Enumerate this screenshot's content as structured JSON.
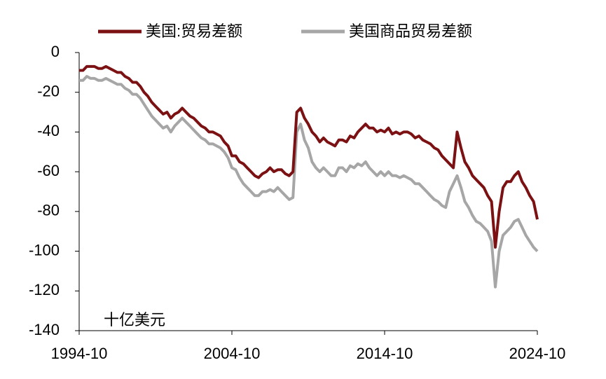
{
  "chart_data": {
    "type": "line",
    "unit_label": "十亿美元",
    "x": [
      "1994-10",
      "1995-01",
      "1995-04",
      "1995-07",
      "1995-10",
      "1996-01",
      "1996-04",
      "1996-07",
      "1996-10",
      "1997-01",
      "1997-04",
      "1997-07",
      "1997-10",
      "1998-01",
      "1998-04",
      "1998-07",
      "1998-10",
      "1999-01",
      "1999-04",
      "1999-07",
      "1999-10",
      "2000-01",
      "2000-04",
      "2000-07",
      "2000-10",
      "2001-01",
      "2001-04",
      "2001-07",
      "2001-10",
      "2002-01",
      "2002-04",
      "2002-07",
      "2002-10",
      "2003-01",
      "2003-04",
      "2003-07",
      "2003-10",
      "2004-01",
      "2004-04",
      "2004-07",
      "2004-10",
      "2005-01",
      "2005-04",
      "2005-07",
      "2005-10",
      "2006-01",
      "2006-04",
      "2006-07",
      "2006-10",
      "2007-01",
      "2007-04",
      "2007-07",
      "2007-10",
      "2008-01",
      "2008-04",
      "2008-07",
      "2008-10",
      "2009-01",
      "2009-04",
      "2009-07",
      "2009-10",
      "2010-01",
      "2010-04",
      "2010-07",
      "2010-10",
      "2011-01",
      "2011-04",
      "2011-07",
      "2011-10",
      "2012-01",
      "2012-04",
      "2012-07",
      "2012-10",
      "2013-01",
      "2013-04",
      "2013-07",
      "2013-10",
      "2014-01",
      "2014-04",
      "2014-07",
      "2014-10",
      "2015-01",
      "2015-04",
      "2015-07",
      "2015-10",
      "2016-01",
      "2016-04",
      "2016-07",
      "2016-10",
      "2017-01",
      "2017-04",
      "2017-07",
      "2017-10",
      "2018-01",
      "2018-04",
      "2018-07",
      "2018-10",
      "2019-01",
      "2019-04",
      "2019-07",
      "2019-10",
      "2020-01",
      "2020-04",
      "2020-07",
      "2020-10",
      "2021-01",
      "2021-04",
      "2021-07",
      "2021-10",
      "2022-01",
      "2022-04",
      "2022-07",
      "2022-10",
      "2023-01",
      "2023-04",
      "2023-07",
      "2023-10",
      "2024-01",
      "2024-04",
      "2024-07",
      "2024-10"
    ],
    "xticks": [
      "1994-10",
      "2004-10",
      "2014-10",
      "2024-10"
    ],
    "series": [
      {
        "name": "美国:贸易差额",
        "color": "#7b1113",
        "values": [
          -9,
          -9,
          -7,
          -7,
          -7,
          -8,
          -8,
          -7,
          -8,
          -9,
          -10,
          -10,
          -12,
          -13,
          -15,
          -15,
          -17,
          -20,
          -22,
          -25,
          -27,
          -29,
          -31,
          -30,
          -33,
          -31,
          -30,
          -28,
          -30,
          -32,
          -33,
          -35,
          -37,
          -38,
          -40,
          -40,
          -41,
          -42,
          -45,
          -47,
          -52,
          -52,
          -55,
          -56,
          -58,
          -60,
          -62,
          -63,
          -61,
          -60,
          -58,
          -60,
          -59,
          -59,
          -61,
          -62,
          -60,
          -30,
          -28,
          -33,
          -36,
          -40,
          -42,
          -45,
          -43,
          -45,
          -46,
          -47,
          -44,
          -44,
          -45,
          -42,
          -43,
          -40,
          -38,
          -36,
          -38,
          -38,
          -40,
          -39,
          -40,
          -38,
          -41,
          -40,
          -41,
          -40,
          -40,
          -41,
          -43,
          -42,
          -44,
          -45,
          -46,
          -48,
          -49,
          -52,
          -54,
          -56,
          -58,
          -40,
          -48,
          -55,
          -58,
          -62,
          -64,
          -66,
          -68,
          -72,
          -75,
          -98,
          -80,
          -68,
          -65,
          -65,
          -62,
          -60,
          -65,
          -68,
          -72,
          -75,
          -84
        ]
      },
      {
        "name": "美国商品贸易差额",
        "color": "#a6a6a6",
        "values": [
          -14,
          -14,
          -12,
          -13,
          -13,
          -14,
          -14,
          -13,
          -14,
          -15,
          -16,
          -16,
          -18,
          -19,
          -21,
          -21,
          -23,
          -26,
          -29,
          -32,
          -34,
          -36,
          -38,
          -37,
          -40,
          -37,
          -35,
          -33,
          -35,
          -37,
          -39,
          -41,
          -43,
          -44,
          -46,
          -46,
          -47,
          -48,
          -50,
          -53,
          -58,
          -59,
          -63,
          -66,
          -68,
          -70,
          -72,
          -72,
          -70,
          -70,
          -69,
          -70,
          -68,
          -70,
          -72,
          -74,
          -73,
          -40,
          -36,
          -44,
          -48,
          -55,
          -58,
          -60,
          -58,
          -60,
          -62,
          -62,
          -58,
          -58,
          -60,
          -57,
          -58,
          -56,
          -57,
          -55,
          -58,
          -60,
          -62,
          -60,
          -62,
          -60,
          -62,
          -62,
          -63,
          -62,
          -63,
          -64,
          -66,
          -66,
          -68,
          -70,
          -72,
          -74,
          -75,
          -77,
          -78,
          -70,
          -66,
          -62,
          -68,
          -75,
          -78,
          -82,
          -85,
          -86,
          -88,
          -90,
          -95,
          -118,
          -100,
          -92,
          -90,
          -88,
          -85,
          -84,
          -88,
          -92,
          -95,
          -98,
          -100
        ]
      }
    ],
    "ylim": [
      -140,
      0
    ],
    "yticks": [
      0,
      -20,
      -40,
      -60,
      -80,
      -100,
      -120,
      -140
    ],
    "grid": false,
    "legend": "top"
  }
}
